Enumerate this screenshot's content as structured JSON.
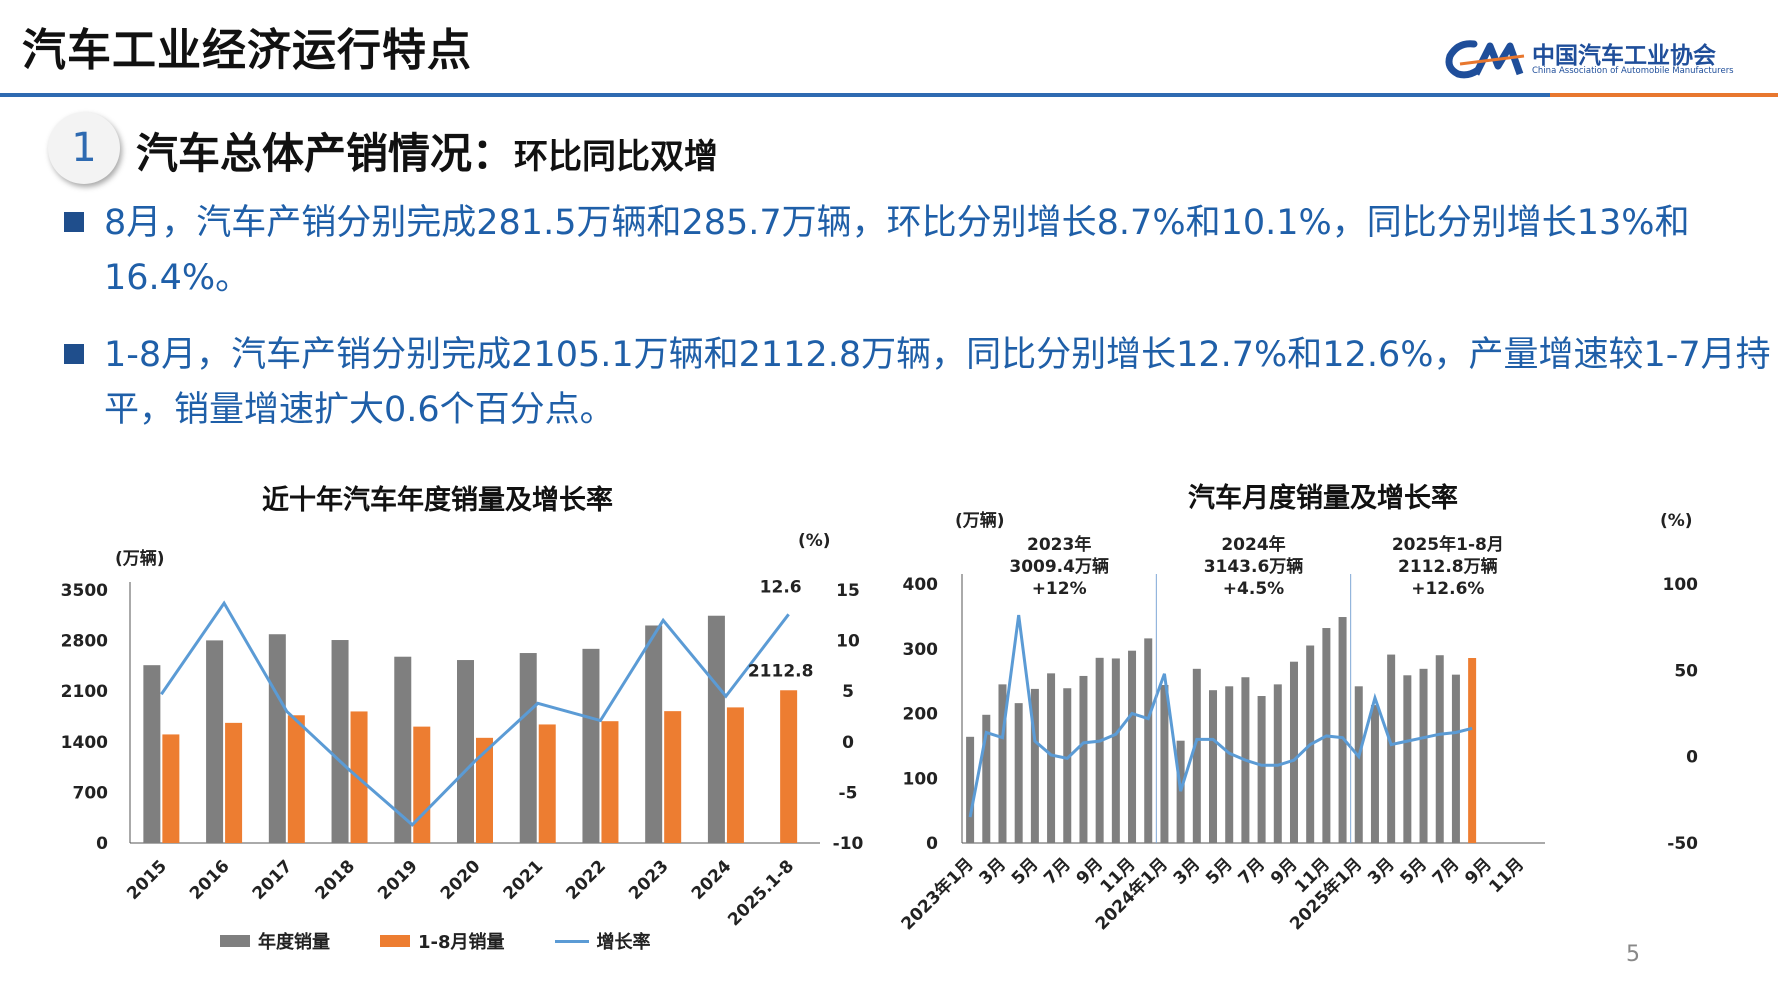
{
  "header": {
    "title": "汽车工业经济运行特点",
    "logo_cn": "中国汽车工业协会",
    "logo_en": "China Association of Automobile Manufacturers"
  },
  "section": {
    "number": "1",
    "title": "汽车总体产销情况：",
    "subtitle": "环比同比双增"
  },
  "bullets": [
    "8月，汽车产销分别完成281.5万辆和285.7万辆，环比分别增长8.7%和10.1%，同比分别增长13%和16.4%。",
    "1-8月，汽车产销分别完成2105.1万辆和2112.8万辆，同比分别增长12.7%和12.6%，产量增速较1-7月持平，销量增速扩大0.6个百分点。"
  ],
  "page_number": "5",
  "colors": {
    "annual_bar": "#7f7f7f",
    "ytd_bar": "#ed7d31",
    "growth_line": "#5b9bd5",
    "accent_blue": "#2e6ab1",
    "accent_orange": "#e8772e"
  },
  "chart_data": [
    {
      "type": "bar",
      "title": "近十年汽车年度销量及增长率",
      "ylabel_left": "(万辆)",
      "ylabel_right": "(%)",
      "categories": [
        "2015",
        "2016",
        "2017",
        "2018",
        "2019",
        "2020",
        "2021",
        "2022",
        "2023",
        "2024",
        "2025.1-8"
      ],
      "ylim_left": [
        0,
        3500
      ],
      "yticks_left": [
        "3500",
        "2800",
        "2100",
        "1400",
        "700",
        "0"
      ],
      "ylim_right": [
        -10,
        15
      ],
      "yticks_right": [
        "15",
        "10",
        "5",
        "0",
        "-5",
        "-10"
      ],
      "series": [
        {
          "name": "年度销量",
          "type": "bar",
          "values": [
            2460,
            2803,
            2888,
            2808,
            2577,
            2531,
            2628,
            2686,
            3009,
            3144,
            null
          ]
        },
        {
          "name": "1-8月销量",
          "type": "bar",
          "values": [
            1502,
            1662,
            1767,
            1820,
            1610,
            1455,
            1640,
            1685,
            1824,
            1876,
            2112.8
          ]
        },
        {
          "name": "增长率",
          "type": "line",
          "axis": "right",
          "values": [
            4.7,
            13.7,
            3.0,
            -2.8,
            -8.2,
            -1.9,
            3.8,
            2.1,
            12.0,
            4.5,
            12.6
          ]
        }
      ],
      "annotations": [
        "12.6",
        "2112.8"
      ],
      "legend": [
        "年度销量",
        "1-8月销量",
        "增长率"
      ],
      "legend_position": "bottom",
      "grid": false
    },
    {
      "type": "bar",
      "title": "汽车月度销量及增长率",
      "ylabel_left": "(万辆)",
      "ylabel_right": "(%)",
      "ylim_left": [
        0,
        400
      ],
      "yticks_left": [
        "400",
        "300",
        "200",
        "100",
        "0"
      ],
      "ylim_right": [
        -50,
        100
      ],
      "yticks_right": [
        "100",
        "50",
        "0",
        "-50"
      ],
      "x_tick_labels": [
        "2023年1月",
        "3月",
        "5月",
        "7月",
        "9月",
        "11月",
        "2024年1月",
        "3月",
        "5月",
        "7月",
        "9月",
        "11月",
        "2025年1月",
        "3月",
        "5月",
        "7月",
        "9月",
        "11月"
      ],
      "months": 36,
      "series": [
        {
          "name": "月度销量",
          "type": "bar",
          "values": [
            164,
            198,
            245,
            216,
            238,
            262,
            239,
            258,
            286,
            285,
            297,
            316,
            244,
            158,
            269,
            236,
            242,
            256,
            227,
            245,
            280,
            305,
            332,
            349,
            242,
            213,
            291,
            259,
            269,
            290,
            260,
            285.7,
            null,
            null,
            null,
            null
          ]
        },
        {
          "name": "增长率",
          "type": "line",
          "axis": "right",
          "values": [
            -35,
            14,
            11,
            82,
            9,
            1,
            -1,
            8,
            9,
            13,
            25,
            22,
            48,
            -20,
            10,
            10,
            2,
            -2,
            -5,
            -5,
            -2,
            7,
            12,
            11,
            0,
            34,
            7,
            9,
            11,
            13,
            14,
            16.4,
            null,
            null,
            null,
            null
          ]
        }
      ],
      "annotations": [
        {
          "label": "2023年",
          "value": "3009.4万辆",
          "growth": "+12%"
        },
        {
          "label": "2024年",
          "value": "3143.6万辆",
          "growth": "+4.5%"
        },
        {
          "label": "2025年1-8月",
          "value": "2112.8万辆",
          "growth": "+12.6%"
        }
      ],
      "grid": false
    }
  ]
}
